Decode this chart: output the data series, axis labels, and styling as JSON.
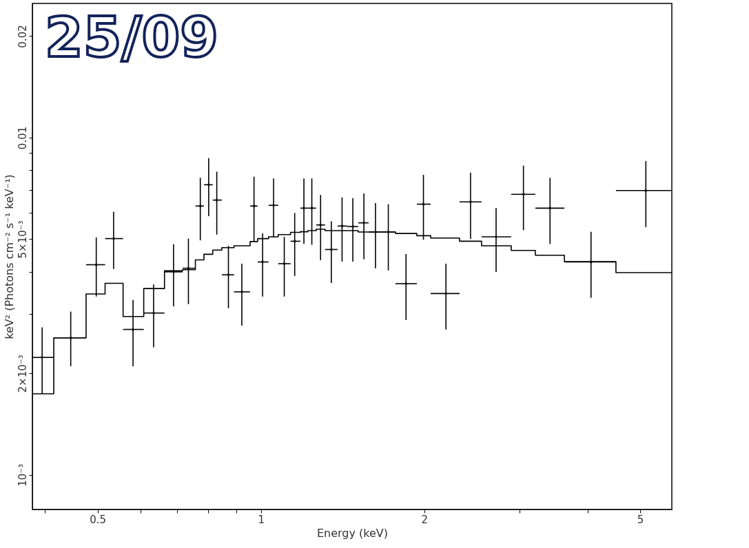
{
  "chart_data": {
    "type": "scatter",
    "xlabel": "Energy (keV)",
    "ylabel": "keV² (Photons cm⁻² s⁻¹ keV⁻¹)",
    "annotations": [
      "25/09"
    ],
    "log": "xy",
    "grid": false,
    "xlim": [
      0.379,
      5.72
    ],
    "ylim": [
      0.00079,
      0.025
    ],
    "xticks": [
      {
        "value": 0.4,
        "label": null
      },
      0.5,
      {
        "value": 0.6,
        "label": null
      },
      {
        "value": 0.7,
        "label": null
      },
      {
        "value": 0.8,
        "label": null
      },
      {
        "value": 0.9,
        "label": null
      },
      1,
      2,
      {
        "value": 3,
        "label": null
      },
      {
        "value": 4,
        "label": null
      },
      5
    ],
    "yticks": [
      {
        "value": 0.001,
        "label": "10⁻³"
      },
      {
        "value": 0.002,
        "label": "2×10⁻³"
      },
      {
        "value": 0.003,
        "label": null
      },
      {
        "value": 0.004,
        "label": null
      },
      {
        "value": 0.005,
        "label": "5×10⁻³"
      },
      {
        "value": 0.006,
        "label": null
      },
      {
        "value": 0.007,
        "label": null
      },
      {
        "value": 0.008,
        "label": null
      },
      {
        "value": 0.009,
        "label": null
      },
      0.01,
      0.02
    ],
    "series": [
      {
        "color": "#000000",
        "marker": "cross",
        "x": [
          0.395,
          0.446,
          0.497,
          0.535,
          0.581,
          0.634,
          0.69,
          0.735,
          0.773,
          0.801,
          0.829,
          0.871,
          0.922,
          0.971,
          1.007,
          1.055,
          1.104,
          1.154,
          1.2,
          1.241,
          1.288,
          1.348,
          1.411,
          1.477,
          1.548,
          1.626,
          1.717,
          1.851,
          1.993,
          2.193,
          2.434,
          2.713,
          3.047,
          3.411,
          4.059,
          5.123
        ],
        "values": [
          0.00223,
          0.00255,
          0.0042,
          0.00502,
          0.0027,
          0.00302,
          0.004,
          0.0041,
          0.00627,
          0.00725,
          0.00653,
          0.00392,
          0.00349,
          0.00627,
          0.00428,
          0.0063,
          0.00423,
          0.00493,
          0.00618,
          0.00618,
          0.00551,
          0.00466,
          0.00547,
          0.00545,
          0.00559,
          0.00525,
          0.00525,
          0.00369,
          0.00635,
          0.00345,
          0.00645,
          0.00508,
          0.00679,
          0.00618,
          0.00428,
          0.00697
        ],
        "errors": [
          [
            0.00174,
            0.00274
          ],
          [
            0.0021,
            0.00305
          ],
          [
            0.00338,
            0.00506
          ],
          [
            0.00408,
            0.00603
          ],
          [
            0.0021,
            0.0033
          ],
          [
            0.00239,
            0.00367
          ],
          [
            0.00316,
            0.00483
          ],
          [
            0.00321,
            0.00502
          ],
          [
            0.00496,
            0.0076
          ],
          [
            0.00585,
            0.00869
          ],
          [
            0.00516,
            0.00793
          ],
          [
            0.00312,
            0.00478
          ],
          [
            0.00277,
            0.00423
          ],
          [
            0.00492,
            0.00766
          ],
          [
            0.00338,
            0.0052
          ],
          [
            0.00506,
            0.00757
          ],
          [
            0.00338,
            0.00508
          ],
          [
            0.00389,
            0.00598
          ],
          [
            0.00484,
            0.00757
          ],
          [
            0.00481,
            0.00757
          ],
          [
            0.00433,
            0.00676
          ],
          [
            0.00371,
            0.00565
          ],
          [
            0.00429,
            0.00665
          ],
          [
            0.00429,
            0.00662
          ],
          [
            0.00436,
            0.00683
          ],
          [
            0.0041,
            0.0064
          ],
          [
            0.00404,
            0.00635
          ],
          [
            0.00288,
            0.00452
          ],
          [
            0.00498,
            0.00776
          ],
          [
            0.0027,
            0.00423
          ],
          [
            0.00501,
            0.00788
          ],
          [
            0.004,
            0.00618
          ],
          [
            0.00532,
            0.00826
          ],
          [
            0.00484,
            0.0076
          ],
          [
            0.00335,
            0.00526
          ],
          [
            0.00543,
            0.00852
          ]
        ],
        "xerrors": [
          [
            0.379,
            0.415
          ],
          [
            0.415,
            0.476
          ],
          [
            0.476,
            0.516
          ],
          [
            0.516,
            0.557
          ],
          [
            0.557,
            0.608
          ],
          [
            0.608,
            0.664
          ],
          [
            0.664,
            0.717
          ],
          [
            0.717,
            0.757
          ],
          [
            0.757,
            0.785
          ],
          [
            0.785,
            0.815
          ],
          [
            0.815,
            0.847
          ],
          [
            0.847,
            0.892
          ],
          [
            0.892,
            0.955
          ],
          [
            0.955,
            0.986
          ],
          [
            0.986,
            1.033
          ],
          [
            1.033,
            1.076
          ],
          [
            1.076,
            1.134
          ],
          [
            1.134,
            1.182
          ],
          [
            1.182,
            1.22
          ],
          [
            1.22,
            1.264
          ],
          [
            1.264,
            1.313
          ],
          [
            1.313,
            1.384
          ],
          [
            1.384,
            1.442
          ],
          [
            1.442,
            1.511
          ],
          [
            1.511,
            1.579
          ],
          [
            1.579,
            1.669
          ],
          [
            1.669,
            1.77
          ],
          [
            1.77,
            1.938
          ],
          [
            1.938,
            2.055
          ],
          [
            2.055,
            2.323
          ],
          [
            2.323,
            2.551
          ],
          [
            2.551,
            2.893
          ],
          [
            2.893,
            3.205
          ],
          [
            3.205,
            3.625
          ],
          [
            3.625,
            4.512
          ],
          [
            4.512,
            5.72
          ]
        ]
      },
      {
        "type": "step",
        "color": "#000000",
        "x": [
          0.379,
          0.415,
          0.476,
          0.516,
          0.557,
          0.608,
          0.664,
          0.717,
          0.757,
          0.785,
          0.815,
          0.847,
          0.892,
          0.955,
          0.986,
          1.033,
          1.076,
          1.134,
          1.182,
          1.22,
          1.264,
          1.313,
          1.384,
          1.442,
          1.511,
          1.579,
          1.669,
          1.77,
          1.938,
          2.055,
          2.323,
          2.551,
          2.893,
          3.205,
          3.625,
          4.512,
          5.72
        ],
        "values": [
          0.00174,
          0.00255,
          0.00344,
          0.0037,
          0.00295,
          0.00357,
          0.00403,
          0.00406,
          0.00434,
          0.00451,
          0.00464,
          0.00472,
          0.00478,
          0.00492,
          0.00502,
          0.00508,
          0.00516,
          0.00524,
          0.00526,
          0.0053,
          0.00535,
          0.0053,
          0.0053,
          0.0053,
          0.00525,
          0.00525,
          0.00525,
          0.0052,
          0.00512,
          0.00504,
          0.00493,
          0.00478,
          0.00463,
          0.00448,
          0.00429,
          0.00398,
          0.00398
        ]
      }
    ]
  }
}
